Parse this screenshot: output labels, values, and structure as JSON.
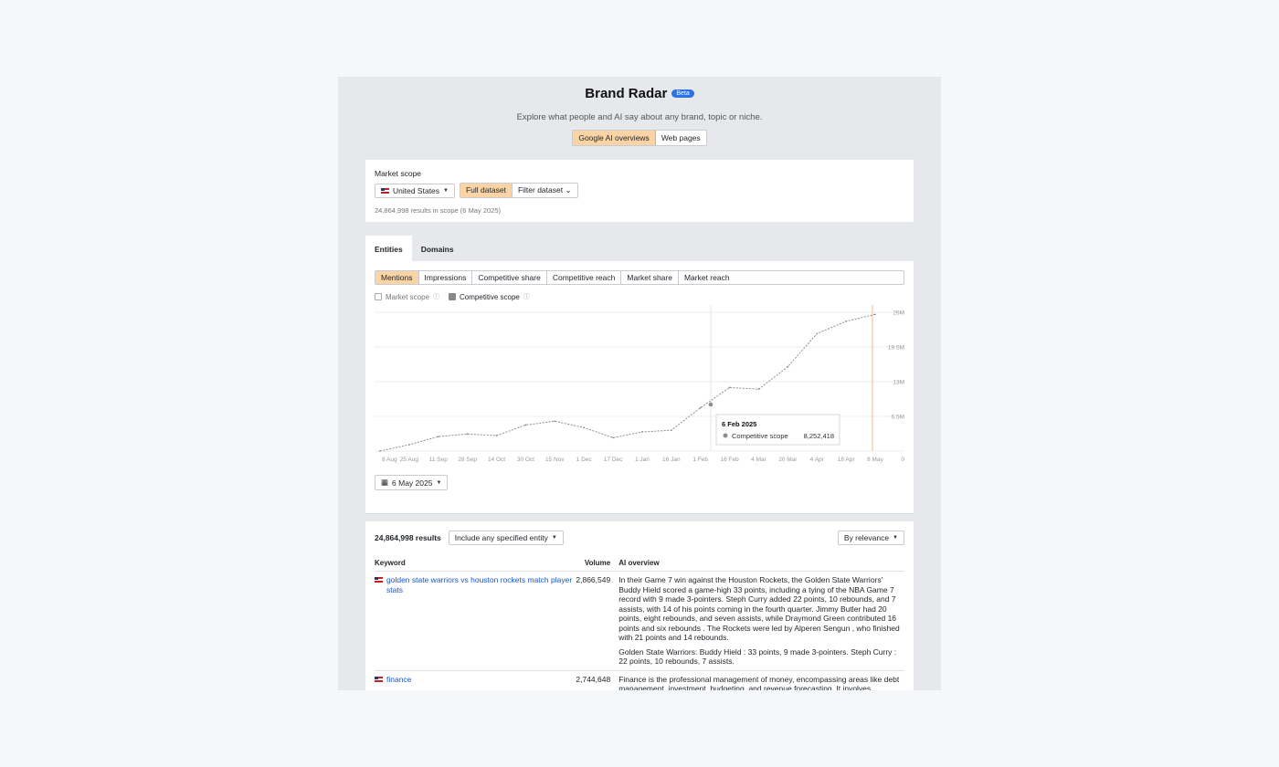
{
  "header": {
    "title": "Brand Radar",
    "badge": "Beta",
    "subtitle": "Explore what people and AI say about any brand, topic or niche.",
    "sources": [
      "Google AI overviews",
      "Web pages"
    ]
  },
  "scope": {
    "label": "Market scope",
    "country": "United States",
    "dataset_options": [
      "Full dataset",
      "Filter dataset"
    ],
    "results_note": "24,864,998 results in scope (6 May 2025)"
  },
  "tabs": [
    "Entities",
    "Domains"
  ],
  "metrics": [
    "Mentions",
    "Impressions",
    "Competitive share",
    "Competitive reach",
    "Market share",
    "Market reach"
  ],
  "checkboxes": {
    "market_scope": "Market scope",
    "competitive_scope": "Competitive scope"
  },
  "chart_data": {
    "type": "line",
    "series": [
      {
        "name": "Competitive scope",
        "x": [
          "8 Aug",
          "25 Aug",
          "11 Sep",
          "28 Sep",
          "14 Oct",
          "30 Oct",
          "15 Nov",
          "1 Dec",
          "17 Dec",
          "1 Jan",
          "16 Jan",
          "1 Feb",
          "16 Feb",
          "4 Mar",
          "20 Mar",
          "4 Apr",
          "18 Apr",
          "8 May"
        ],
        "values": [
          0.0,
          1.2,
          2.7,
          3.2,
          2.9,
          4.9,
          5.6,
          4.4,
          2.5,
          3.6,
          3.9,
          8.1,
          11.9,
          11.6,
          15.8,
          22.0,
          24.3,
          25.6
        ]
      }
    ],
    "xticks": [
      "8 Aug",
      "25 Aug",
      "11 Sep",
      "28 Sep",
      "14 Oct",
      "30 Oct",
      "15 Nov",
      "1 Dec",
      "17 Dec",
      "1 Jan",
      "16 Jan",
      "1 Feb",
      "16 Feb",
      "4 Mar",
      "20 Mar",
      "4 Apr",
      "18 Apr",
      "8 May"
    ],
    "yticks": [
      "0",
      "6.5M",
      "13M",
      "19.5M",
      "26M"
    ],
    "ylim": [
      0,
      26
    ],
    "grid": true,
    "tooltip": {
      "date": "6 Feb 2025",
      "series": "Competitive scope",
      "value": "8,252,418"
    }
  },
  "date_picker": "6 May 2025",
  "results": {
    "count": "24,864,998 results",
    "filter": "Include any specified entity",
    "sort": "By relevance",
    "columns": [
      "Keyword",
      "Volume",
      "AI overview"
    ],
    "rows": [
      {
        "keyword": "golden state warriors vs houston rockets match player stats",
        "volume": "2,866,549",
        "overview": [
          "In their Game 7 win against the Houston Rockets, the Golden State Warriors' Buddy Hield scored a game-high 33 points, including a tying of the NBA Game 7 record with 9 made 3-pointers. Steph Curry added 22 points, 10 rebounds, and 7 assists, with 14 of his points coming in the fourth quarter. Jimmy Butler had 20 points, eight rebounds, and seven assists, while Draymond Green contributed 16 points and six rebounds . The Rockets were led by Alperen Sengun , who finished with 21 points and 14 rebounds.",
          "Golden State Warriors: Buddy Hield : 33 points, 9 made 3-pointers. Steph Curry : 22 points, 10 rebounds, 7 assists."
        ]
      },
      {
        "keyword": "finance",
        "volume": "2,744,648",
        "overview": [
          "Finance is the professional management of money, encompassing areas like debt management, investment, budgeting, and revenue forecasting. It involves allocating resources, sending and receiving capital, and managing."
        ]
      }
    ]
  }
}
